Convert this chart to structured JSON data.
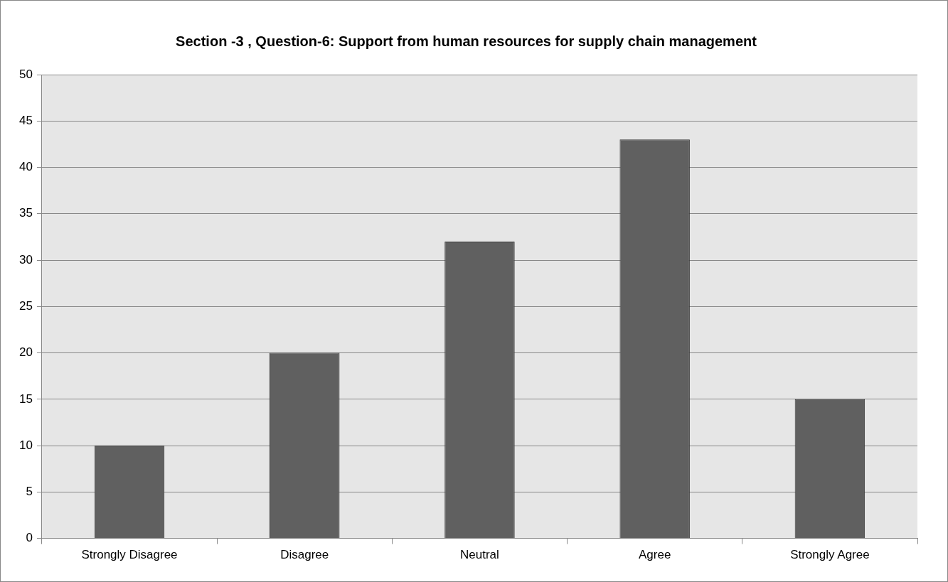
{
  "chart_data": {
    "type": "bar",
    "title": "Section -3 , Question-6: Support from human resources for supply chain management",
    "categories": [
      "Strongly Disagree",
      "Disagree",
      "Neutral",
      "Agree",
      "Strongly Agree"
    ],
    "values": [
      10,
      20,
      32,
      43,
      15
    ],
    "color": "#606060",
    "ylim": [
      0,
      50
    ],
    "yticks": [
      0,
      5,
      10,
      15,
      20,
      25,
      30,
      35,
      40,
      45,
      50
    ],
    "grid": "y",
    "legend": false
  }
}
